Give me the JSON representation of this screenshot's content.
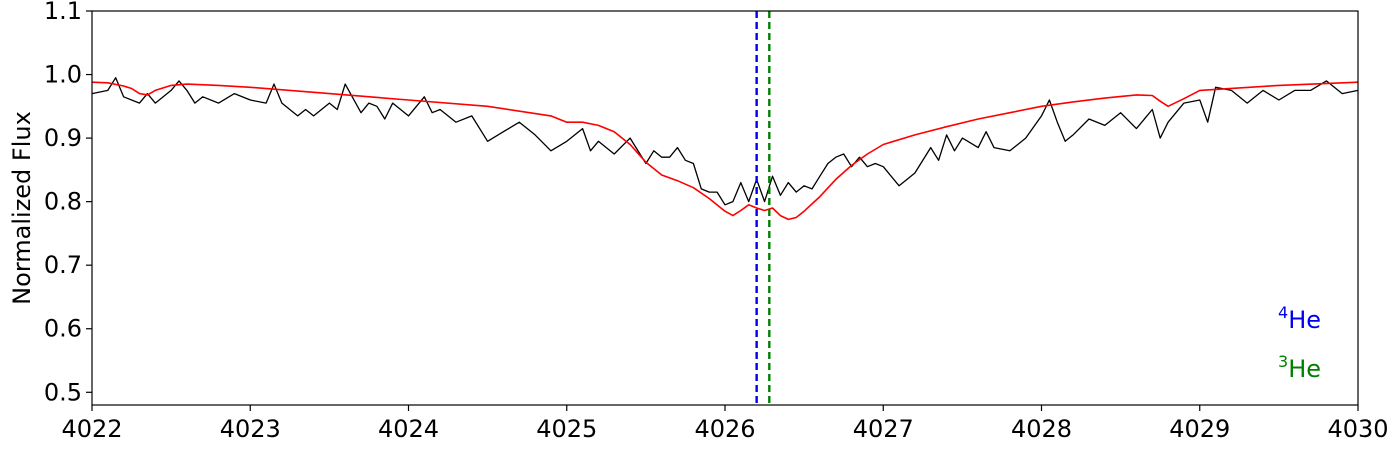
{
  "chart_data": {
    "type": "line",
    "title": "",
    "xlabel": "",
    "ylabel": "Normalized Flux",
    "xlim": [
      4022,
      4030
    ],
    "ylim": [
      0.48,
      1.1
    ],
    "xticks": [
      "4022",
      "4023",
      "4024",
      "4025",
      "4026",
      "4027",
      "4028",
      "4029",
      "4030"
    ],
    "yticks": [
      "0.5",
      "0.6",
      "0.7",
      "0.8",
      "0.9",
      "1.0",
      "1.1"
    ],
    "grid": false,
    "legend_position": "bottom-right",
    "series": [
      {
        "color": "#000000",
        "x": [
          4022.0,
          4022.1,
          4022.15,
          4022.2,
          4022.3,
          4022.35,
          4022.4,
          4022.45,
          4022.5,
          4022.55,
          4022.6,
          4022.65,
          4022.7,
          4022.8,
          4022.9,
          4023.0,
          4023.1,
          4023.15,
          4023.2,
          4023.3,
          4023.35,
          4023.4,
          4023.5,
          4023.55,
          4023.6,
          4023.7,
          4023.75,
          4023.8,
          4023.85,
          4023.9,
          4024.0,
          4024.1,
          4024.15,
          4024.2,
          4024.3,
          4024.4,
          4024.5,
          4024.6,
          4024.7,
          4024.8,
          4024.9,
          4025.0,
          4025.1,
          4025.15,
          4025.2,
          4025.3,
          4025.4,
          4025.5,
          4025.55,
          4025.6,
          4025.65,
          4025.7,
          4025.75,
          4025.8,
          4025.85,
          4025.9,
          4025.95,
          4026.0,
          4026.05,
          4026.1,
          4026.15,
          4026.2,
          4026.25,
          4026.3,
          4026.35,
          4026.4,
          4026.45,
          4026.5,
          4026.55,
          4026.6,
          4026.65,
          4026.7,
          4026.75,
          4026.8,
          4026.85,
          4026.9,
          4026.95,
          4027.0,
          4027.1,
          4027.2,
          4027.3,
          4027.35,
          4027.4,
          4027.45,
          4027.5,
          4027.6,
          4027.65,
          4027.7,
          4027.8,
          4027.9,
          4028.0,
          4028.05,
          4028.1,
          4028.15,
          4028.2,
          4028.3,
          4028.4,
          4028.5,
          4028.6,
          4028.7,
          4028.75,
          4028.8,
          4028.9,
          4029.0,
          4029.05,
          4029.1,
          4029.2,
          4029.3,
          4029.4,
          4029.5,
          4029.6,
          4029.7,
          4029.8,
          4029.9,
          4030.0
        ],
        "y": [
          0.97,
          0.975,
          0.995,
          0.965,
          0.955,
          0.97,
          0.955,
          0.965,
          0.975,
          0.99,
          0.975,
          0.955,
          0.965,
          0.955,
          0.97,
          0.96,
          0.955,
          0.985,
          0.955,
          0.935,
          0.945,
          0.935,
          0.955,
          0.945,
          0.985,
          0.94,
          0.955,
          0.95,
          0.93,
          0.955,
          0.935,
          0.965,
          0.94,
          0.945,
          0.925,
          0.935,
          0.895,
          0.91,
          0.925,
          0.905,
          0.88,
          0.895,
          0.915,
          0.88,
          0.895,
          0.875,
          0.9,
          0.86,
          0.88,
          0.87,
          0.87,
          0.885,
          0.865,
          0.86,
          0.82,
          0.815,
          0.815,
          0.795,
          0.8,
          0.83,
          0.8,
          0.835,
          0.8,
          0.84,
          0.81,
          0.83,
          0.815,
          0.825,
          0.82,
          0.84,
          0.86,
          0.87,
          0.875,
          0.855,
          0.87,
          0.855,
          0.86,
          0.855,
          0.825,
          0.845,
          0.885,
          0.865,
          0.905,
          0.88,
          0.9,
          0.885,
          0.91,
          0.885,
          0.88,
          0.9,
          0.935,
          0.96,
          0.925,
          0.895,
          0.905,
          0.93,
          0.92,
          0.94,
          0.915,
          0.945,
          0.9,
          0.925,
          0.955,
          0.96,
          0.925,
          0.98,
          0.975,
          0.955,
          0.975,
          0.96,
          0.975,
          0.975,
          0.99,
          0.97,
          0.975
        ]
      },
      {
        "color": "#ff0000",
        "x": [
          4022.0,
          4022.1,
          4022.2,
          4022.25,
          4022.3,
          4022.35,
          4022.4,
          4022.5,
          4022.6,
          4022.8,
          4023.0,
          4023.5,
          4024.0,
          4024.5,
          4024.9,
          4025.0,
          4025.1,
          4025.2,
          4025.3,
          4025.4,
          4025.5,
          4025.6,
          4025.7,
          4025.8,
          4025.9,
          4026.0,
          4026.05,
          4026.1,
          4026.15,
          4026.2,
          4026.25,
          4026.3,
          4026.35,
          4026.4,
          4026.45,
          4026.5,
          4026.6,
          4026.7,
          4026.8,
          4026.9,
          4027.0,
          4027.2,
          4027.4,
          4027.6,
          4027.8,
          4028.0,
          4028.2,
          4028.4,
          4028.6,
          4028.7,
          4028.75,
          4028.8,
          4028.9,
          4029.0,
          4029.5,
          4030.0
        ],
        "y": [
          0.988,
          0.987,
          0.982,
          0.978,
          0.97,
          0.968,
          0.975,
          0.983,
          0.985,
          0.983,
          0.98,
          0.97,
          0.96,
          0.95,
          0.935,
          0.925,
          0.925,
          0.92,
          0.91,
          0.89,
          0.862,
          0.842,
          0.833,
          0.822,
          0.805,
          0.785,
          0.778,
          0.786,
          0.795,
          0.79,
          0.786,
          0.79,
          0.778,
          0.772,
          0.775,
          0.785,
          0.808,
          0.835,
          0.857,
          0.875,
          0.89,
          0.905,
          0.918,
          0.93,
          0.94,
          0.95,
          0.957,
          0.963,
          0.968,
          0.967,
          0.958,
          0.95,
          0.962,
          0.975,
          0.983,
          0.988
        ]
      }
    ],
    "vlines": [
      {
        "label": "⁴He",
        "x": 4026.2,
        "color": "#0000ee"
      },
      {
        "label": "³He",
        "x": 4026.28,
        "color": "#008000"
      }
    ]
  },
  "legend": {
    "he4": {
      "sup": "4",
      "text": "He",
      "color": "#0000ee"
    },
    "he3": {
      "sup": "3",
      "text": "He",
      "color": "#008000"
    }
  }
}
